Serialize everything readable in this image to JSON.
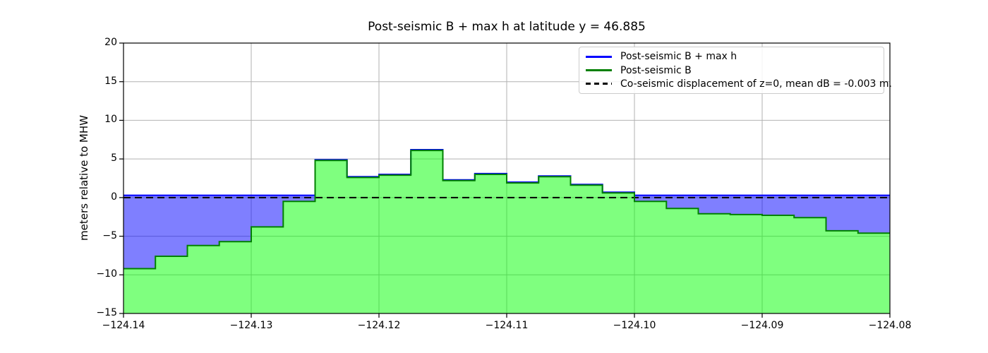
{
  "figure": {
    "title": "Post-seismic B + max h at latitude y = 46.885",
    "ylabel": "meters relative to MHW"
  },
  "legend": {
    "items": [
      {
        "label": "Post-seismic B + max h",
        "color": "#0000ff",
        "line_style": "solid"
      },
      {
        "label": "Post-seismic B",
        "color": "#008000",
        "line_style": "solid"
      },
      {
        "label": "Co-seismic displacement of z=0, mean dB = -0.003 m.",
        "color": "#000000",
        "line_style": "dashed"
      }
    ]
  },
  "chart_data": {
    "type": "area",
    "title": "Post-seismic B + max h at latitude y = 46.885",
    "xlabel": "",
    "ylabel": "meters relative to MHW",
    "xlim": [
      -124.14,
      -124.08
    ],
    "ylim": [
      -15,
      20
    ],
    "x_ticks": [
      -124.14,
      -124.13,
      -124.12,
      -124.11,
      -124.1,
      -124.09,
      -124.08
    ],
    "x_tick_labels": [
      "−124.14",
      "−124.13",
      "−124.12",
      "−124.11",
      "−124.10",
      "−124.09",
      "−124.08"
    ],
    "y_ticks": [
      -15,
      -10,
      -5,
      0,
      5,
      10,
      15,
      20
    ],
    "y_tick_labels": [
      "−15",
      "−10",
      "−5",
      "0",
      "5",
      "10",
      "15",
      "20"
    ],
    "grid": true,
    "legend_position": "upper right",
    "step_x_start": -124.14,
    "step_width_deg": 0.0025,
    "series": [
      {
        "name": "Post-seismic B + max h",
        "type": "step",
        "color": "#0000ff",
        "values": [
          0.3,
          0.3,
          0.3,
          0.3,
          0.3,
          0.3,
          4.9,
          2.7,
          3.0,
          6.2,
          2.3,
          3.1,
          2.0,
          2.8,
          1.7,
          0.7,
          0.3,
          0.3,
          0.3,
          0.3,
          0.3,
          0.3,
          0.3,
          0.3
        ]
      },
      {
        "name": "Post-seismic B",
        "type": "step",
        "color": "#008000",
        "values": [
          -9.2,
          -7.6,
          -6.2,
          -5.7,
          -3.8,
          -0.5,
          4.8,
          2.6,
          2.9,
          6.1,
          2.2,
          3.0,
          1.9,
          2.7,
          1.6,
          0.6,
          -0.5,
          -1.4,
          -2.1,
          -2.2,
          -2.3,
          -2.6,
          -4.3,
          -4.6
        ]
      },
      {
        "name": "Co-seismic displacement of z=0, mean dB = -0.003 m.",
        "type": "hline",
        "y": -0.003,
        "color": "#000000",
        "style": "dashed"
      }
    ],
    "colors": {
      "green_fill": "rgba(0,255,0,0.5)",
      "blue_fill": "rgba(0,0,255,0.5)",
      "grid": "#b2b2b2",
      "spine": "#000000"
    }
  }
}
